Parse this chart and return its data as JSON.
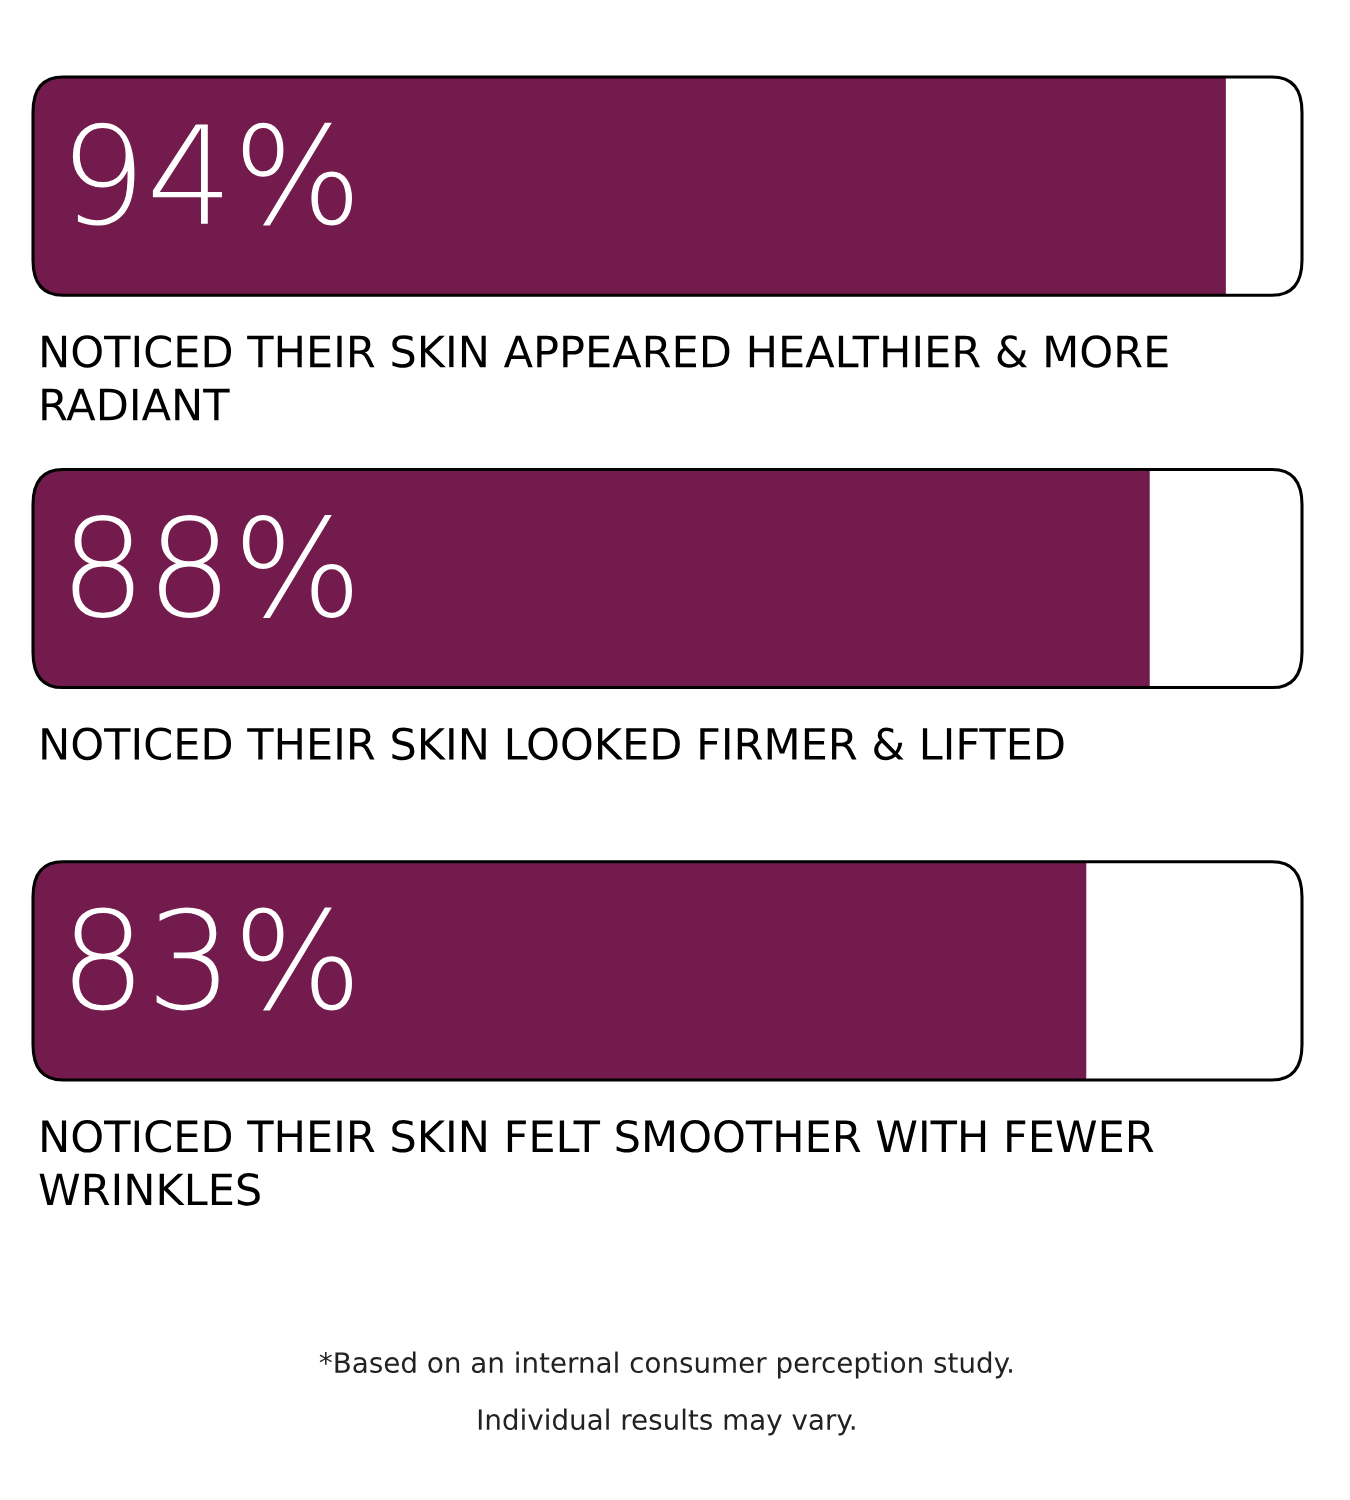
{
  "chart_data": {
    "type": "bar",
    "orientation": "horizontal",
    "categories": [
      "NOTICED THEIR SKIN APPEARED HEALTHIER & MORE RADIANT",
      "NOTICED THEIR SKIN LOOKED FIRMER & LIFTED",
      "NOTICED THEIR SKIN FELT SMOOTHER WITH FEWER WRINKLES"
    ],
    "values": [
      94,
      88,
      83
    ],
    "value_labels": [
      "94%",
      "88%",
      "83%"
    ],
    "color": "#741b4d",
    "xlim": [
      0,
      100
    ],
    "tick_labels": false,
    "annotations": [
      "*Based on an internal consumer perception study.",
      "Individual results may vary."
    ]
  }
}
